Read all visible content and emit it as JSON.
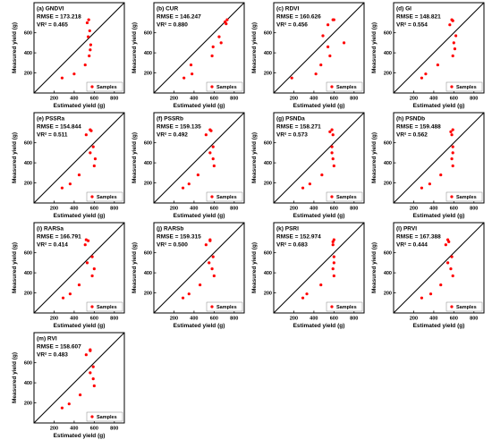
{
  "figure": {
    "xlabel": "Estimated yield (g)",
    "ylabel": "Measured yield (g)",
    "legend_label": "Samples",
    "xticks": [
      200,
      400,
      600,
      800
    ],
    "yticks": [
      200,
      400,
      600
    ],
    "marker_color": "#ff0000",
    "line_color": "#000000"
  },
  "chart_data": [
    {
      "type": "scatter",
      "title": "(a) GNDVI",
      "stats": [
        "RMSE = 173.218",
        "VR² = 0.465"
      ],
      "xlim": [
        0,
        900
      ],
      "ylim": [
        0,
        900
      ],
      "legend_position": "bottom-right",
      "points": [
        [
          280,
          150
        ],
        [
          400,
          190
        ],
        [
          510,
          280
        ],
        [
          550,
          370
        ],
        [
          560,
          430
        ],
        [
          565,
          480
        ],
        [
          540,
          560
        ],
        [
          555,
          620
        ],
        [
          530,
          700
        ],
        [
          545,
          730
        ]
      ]
    },
    {
      "type": "scatter",
      "title": "(b) CUR",
      "stats": [
        "RMSE = 146.247",
        "VR² = 0.880"
      ],
      "xlim": [
        0,
        900
      ],
      "ylim": [
        0,
        900
      ],
      "legend_position": "bottom-right",
      "points": [
        [
          300,
          150
        ],
        [
          380,
          190
        ],
        [
          370,
          280
        ],
        [
          580,
          370
        ],
        [
          590,
          460
        ],
        [
          670,
          500
        ],
        [
          650,
          560
        ],
        [
          720,
          690
        ],
        [
          710,
          710
        ],
        [
          730,
          730
        ]
      ]
    },
    {
      "type": "scatter",
      "title": "(c) RDVI",
      "stats": [
        "RMSE = 160.626",
        "VR² = 0.456",
        "VR² = 0.456"
      ],
      "xlim": [
        0,
        900
      ],
      "ylim": [
        0,
        900
      ],
      "legend_position": "bottom-right",
      "points": [
        [
          180,
          150
        ],
        [
          420,
          190
        ],
        [
          470,
          280
        ],
        [
          560,
          370
        ],
        [
          540,
          460
        ],
        [
          700,
          500
        ],
        [
          490,
          570
        ],
        [
          540,
          680
        ],
        [
          590,
          730
        ],
        [
          600,
          730
        ]
      ]
    },
    {
      "type": "scatter",
      "title": "(d) GI",
      "stats": [
        "RMSE = 148.821",
        "VR² = 0.554"
      ],
      "xlim": [
        0,
        900
      ],
      "ylim": [
        0,
        900
      ],
      "legend_position": "bottom-right",
      "points": [
        [
          280,
          150
        ],
        [
          320,
          190
        ],
        [
          440,
          280
        ],
        [
          590,
          370
        ],
        [
          610,
          440
        ],
        [
          600,
          500
        ],
        [
          620,
          570
        ],
        [
          560,
          680
        ],
        [
          590,
          720
        ],
        [
          580,
          730
        ]
      ]
    },
    {
      "type": "scatter",
      "title": "(e) PSSRa",
      "stats": [
        "RMSE = 154.844",
        "VR² = 0.511"
      ],
      "xlim": [
        0,
        900
      ],
      "ylim": [
        0,
        900
      ],
      "legend_position": "bottom-right",
      "points": [
        [
          280,
          150
        ],
        [
          360,
          190
        ],
        [
          450,
          280
        ],
        [
          600,
          370
        ],
        [
          610,
          440
        ],
        [
          560,
          500
        ],
        [
          590,
          560
        ],
        [
          520,
          680
        ],
        [
          570,
          720
        ],
        [
          560,
          730
        ]
      ]
    },
    {
      "type": "scatter",
      "title": "(f) PSSRb",
      "stats": [
        "RMSE = 159.135",
        "VR² = 0.492"
      ],
      "xlim": [
        0,
        900
      ],
      "ylim": [
        0,
        900
      ],
      "legend_position": "bottom-right",
      "points": [
        [
          290,
          150
        ],
        [
          350,
          190
        ],
        [
          440,
          280
        ],
        [
          600,
          370
        ],
        [
          590,
          440
        ],
        [
          560,
          500
        ],
        [
          590,
          560
        ],
        [
          520,
          680
        ],
        [
          570,
          720
        ],
        [
          560,
          730
        ]
      ]
    },
    {
      "type": "scatter",
      "title": "(g) PSNDa",
      "stats": [
        "RMSE = 158.271",
        "VR² = 0.573"
      ],
      "xlim": [
        0,
        900
      ],
      "ylim": [
        0,
        900
      ],
      "legend_position": "bottom-right",
      "points": [
        [
          290,
          150
        ],
        [
          360,
          190
        ],
        [
          480,
          280
        ],
        [
          600,
          370
        ],
        [
          590,
          440
        ],
        [
          580,
          500
        ],
        [
          580,
          560
        ],
        [
          590,
          680
        ],
        [
          560,
          710
        ],
        [
          580,
          730
        ]
      ]
    },
    {
      "type": "scatter",
      "title": "(h) PSNDb",
      "stats": [
        "RMSE = 159.488",
        "VR² = 0.562"
      ],
      "xlim": [
        0,
        900
      ],
      "ylim": [
        0,
        900
      ],
      "legend_position": "bottom-right",
      "points": [
        [
          280,
          150
        ],
        [
          360,
          190
        ],
        [
          470,
          280
        ],
        [
          590,
          370
        ],
        [
          580,
          440
        ],
        [
          590,
          500
        ],
        [
          590,
          560
        ],
        [
          580,
          680
        ],
        [
          570,
          710
        ],
        [
          590,
          730
        ]
      ]
    },
    {
      "type": "scatter",
      "title": "(i) RARSa",
      "stats": [
        "RMSE = 166.791",
        "VR² = 0.414"
      ],
      "xlim": [
        0,
        900
      ],
      "ylim": [
        0,
        900
      ],
      "legend_position": "bottom-right",
      "points": [
        [
          290,
          150
        ],
        [
          360,
          190
        ],
        [
          450,
          280
        ],
        [
          580,
          370
        ],
        [
          600,
          440
        ],
        [
          530,
          500
        ],
        [
          580,
          560
        ],
        [
          510,
          680
        ],
        [
          540,
          720
        ],
        [
          520,
          730
        ]
      ]
    },
    {
      "type": "scatter",
      "title": "(j) RARSb",
      "stats": [
        "RMSE = 159.315",
        "VR² = 0.500"
      ],
      "xlim": [
        0,
        900
      ],
      "ylim": [
        0,
        900
      ],
      "legend_position": "bottom-right",
      "points": [
        [
          290,
          150
        ],
        [
          350,
          190
        ],
        [
          460,
          280
        ],
        [
          600,
          370
        ],
        [
          580,
          440
        ],
        [
          550,
          500
        ],
        [
          590,
          560
        ],
        [
          520,
          680
        ],
        [
          560,
          720
        ],
        [
          560,
          730
        ]
      ]
    },
    {
      "type": "scatter",
      "title": "(k) PSRI",
      "stats": [
        "RMSE = 152.974",
        "VR² = 0.683"
      ],
      "xlim": [
        0,
        900
      ],
      "ylim": [
        0,
        900
      ],
      "legend_position": "bottom-right",
      "points": [
        [
          290,
          150
        ],
        [
          330,
          190
        ],
        [
          470,
          280
        ],
        [
          600,
          370
        ],
        [
          590,
          440
        ],
        [
          600,
          500
        ],
        [
          600,
          560
        ],
        [
          590,
          680
        ],
        [
          590,
          710
        ],
        [
          600,
          730
        ]
      ]
    },
    {
      "type": "scatter",
      "title": "(l) PRVI",
      "stats": [
        "RMSE = 167.388",
        "VR² = 0.444"
      ],
      "xlim": [
        0,
        900
      ],
      "ylim": [
        0,
        900
      ],
      "legend_position": "bottom-right",
      "points": [
        [
          280,
          150
        ],
        [
          370,
          190
        ],
        [
          470,
          280
        ],
        [
          590,
          370
        ],
        [
          570,
          440
        ],
        [
          540,
          500
        ],
        [
          580,
          560
        ],
        [
          520,
          680
        ],
        [
          550,
          710
        ],
        [
          540,
          730
        ]
      ]
    },
    {
      "type": "scatter",
      "title": "(m) RVI",
      "stats": [
        "RMSE = 158.607",
        "VR² = 0.483"
      ],
      "xlim": [
        0,
        900
      ],
      "ylim": [
        0,
        900
      ],
      "legend_position": "bottom-right",
      "points": [
        [
          280,
          150
        ],
        [
          350,
          190
        ],
        [
          460,
          280
        ],
        [
          600,
          370
        ],
        [
          590,
          440
        ],
        [
          560,
          500
        ],
        [
          590,
          560
        ],
        [
          520,
          680
        ],
        [
          560,
          720
        ],
        [
          560,
          730
        ]
      ]
    }
  ]
}
